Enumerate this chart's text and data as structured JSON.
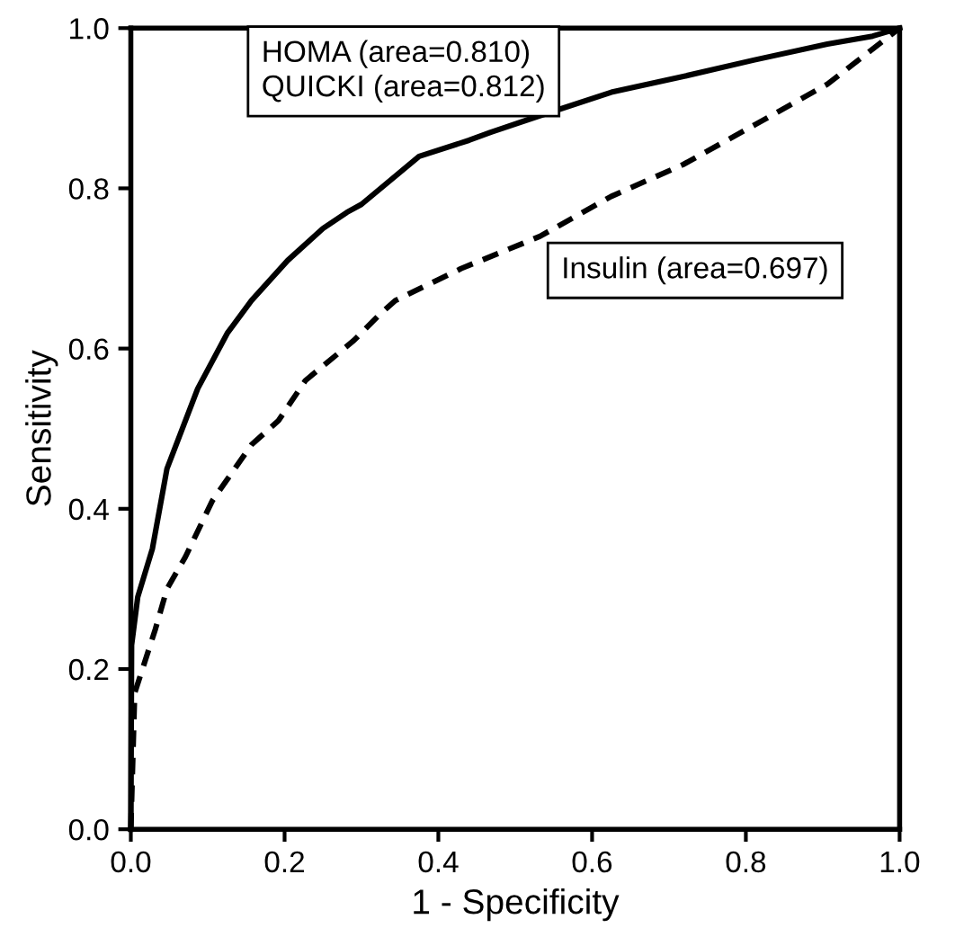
{
  "chart_data": {
    "type": "line",
    "xlabel": "1 - Specificity",
    "ylabel": "Sensitivity",
    "xlim": [
      0,
      1
    ],
    "ylim": [
      0,
      1
    ],
    "xticks": [
      {
        "value": 0,
        "label": "0.0"
      },
      {
        "value": 0.2,
        "label": "0.2"
      },
      {
        "value": 0.4,
        "label": "0.4"
      },
      {
        "value": 0.6,
        "label": "0.6"
      },
      {
        "value": 0.8,
        "label": "0.8"
      },
      {
        "value": 1,
        "label": "1.0"
      }
    ],
    "yticks": [
      {
        "value": 0,
        "label": "0.0"
      },
      {
        "value": 0.2,
        "label": "0.2"
      },
      {
        "value": 0.4,
        "label": "0.4"
      },
      {
        "value": 0.6,
        "label": "0.6"
      },
      {
        "value": 0.8,
        "label": "0.8"
      },
      {
        "value": 1,
        "label": "1.0"
      }
    ],
    "grid": false,
    "legend": false,
    "marker": "none",
    "series": [
      {
        "color": "#000000",
        "line_style": "solid",
        "x": [
          0,
          0.001,
          0.009,
          0.028,
          0.047,
          0.063,
          0.087,
          0.126,
          0.157,
          0.204,
          0.25,
          0.281,
          0.3,
          0.375,
          0.44,
          0.468,
          0.53,
          0.625,
          0.72,
          0.81,
          0.906,
          0.965,
          1
        ],
        "values": [
          0,
          0.23,
          0.29,
          0.35,
          0.45,
          0.49,
          0.55,
          0.62,
          0.66,
          0.71,
          0.75,
          0.77,
          0.78,
          0.84,
          0.86,
          0.87,
          0.89,
          0.92,
          0.94,
          0.96,
          0.98,
          0.99,
          1
        ]
      },
      {
        "color": "#000000",
        "line_style": "dashed",
        "x": [
          0,
          0.005,
          0.032,
          0.047,
          0.071,
          0.106,
          0.157,
          0.192,
          0.227,
          0.29,
          0.321,
          0.344,
          0.43,
          0.532,
          0.625,
          0.719,
          0.813,
          0.906,
          1
        ],
        "values": [
          0,
          0.17,
          0.25,
          0.3,
          0.34,
          0.41,
          0.48,
          0.51,
          0.56,
          0.61,
          0.64,
          0.66,
          0.7,
          0.74,
          0.79,
          0.83,
          0.88,
          0.93,
          1
        ]
      }
    ],
    "annotations": [
      "HOMA (area=0.810)\nQUICKI (area=0.812)",
      "Insulin (area=0.697)"
    ]
  }
}
